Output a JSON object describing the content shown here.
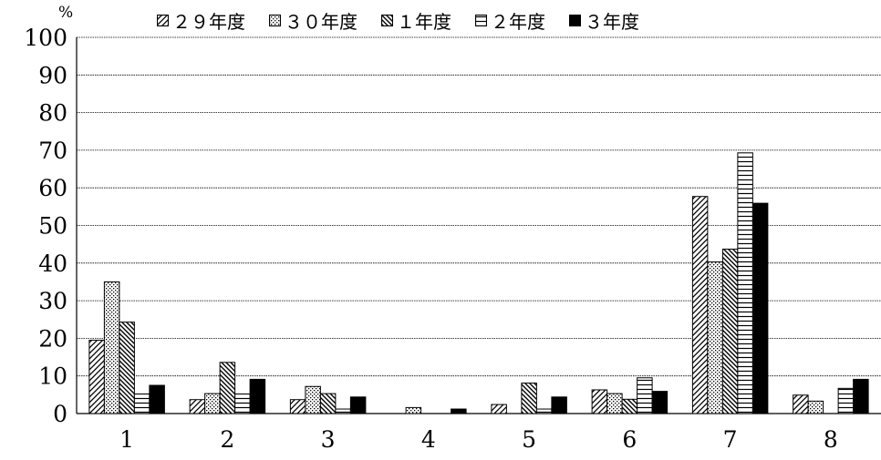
{
  "chart_data": {
    "type": "bar",
    "categories": [
      "1",
      "2",
      "3",
      "4",
      "5",
      "6",
      "7",
      "8"
    ],
    "series": [
      {
        "name": "２９年度",
        "values": [
          19.5,
          3.7,
          3.7,
          0,
          2.4,
          6.3,
          57.7,
          4.9
        ]
      },
      {
        "name": "３０年度",
        "values": [
          35,
          5.3,
          7.2,
          1.6,
          0,
          5.3,
          40.3,
          3.3
        ]
      },
      {
        "name": "１年度",
        "values": [
          24.3,
          13.6,
          5.3,
          0,
          8.1,
          3.8,
          43.7,
          0
        ]
      },
      {
        "name": "２年度",
        "values": [
          5.2,
          5.2,
          1.2,
          0,
          1.2,
          9.5,
          69.3,
          6.7
        ]
      },
      {
        "name": "３年度",
        "values": [
          7.5,
          9.1,
          4.4,
          1.2,
          4.4,
          5.9,
          55.9,
          9.1
        ]
      }
    ],
    "ylim": [
      0,
      100
    ],
    "yticks": [
      0,
      10,
      20,
      30,
      40,
      50,
      60,
      70,
      80,
      90,
      100
    ],
    "unit": "%",
    "grid": true,
    "legend": "top"
  }
}
